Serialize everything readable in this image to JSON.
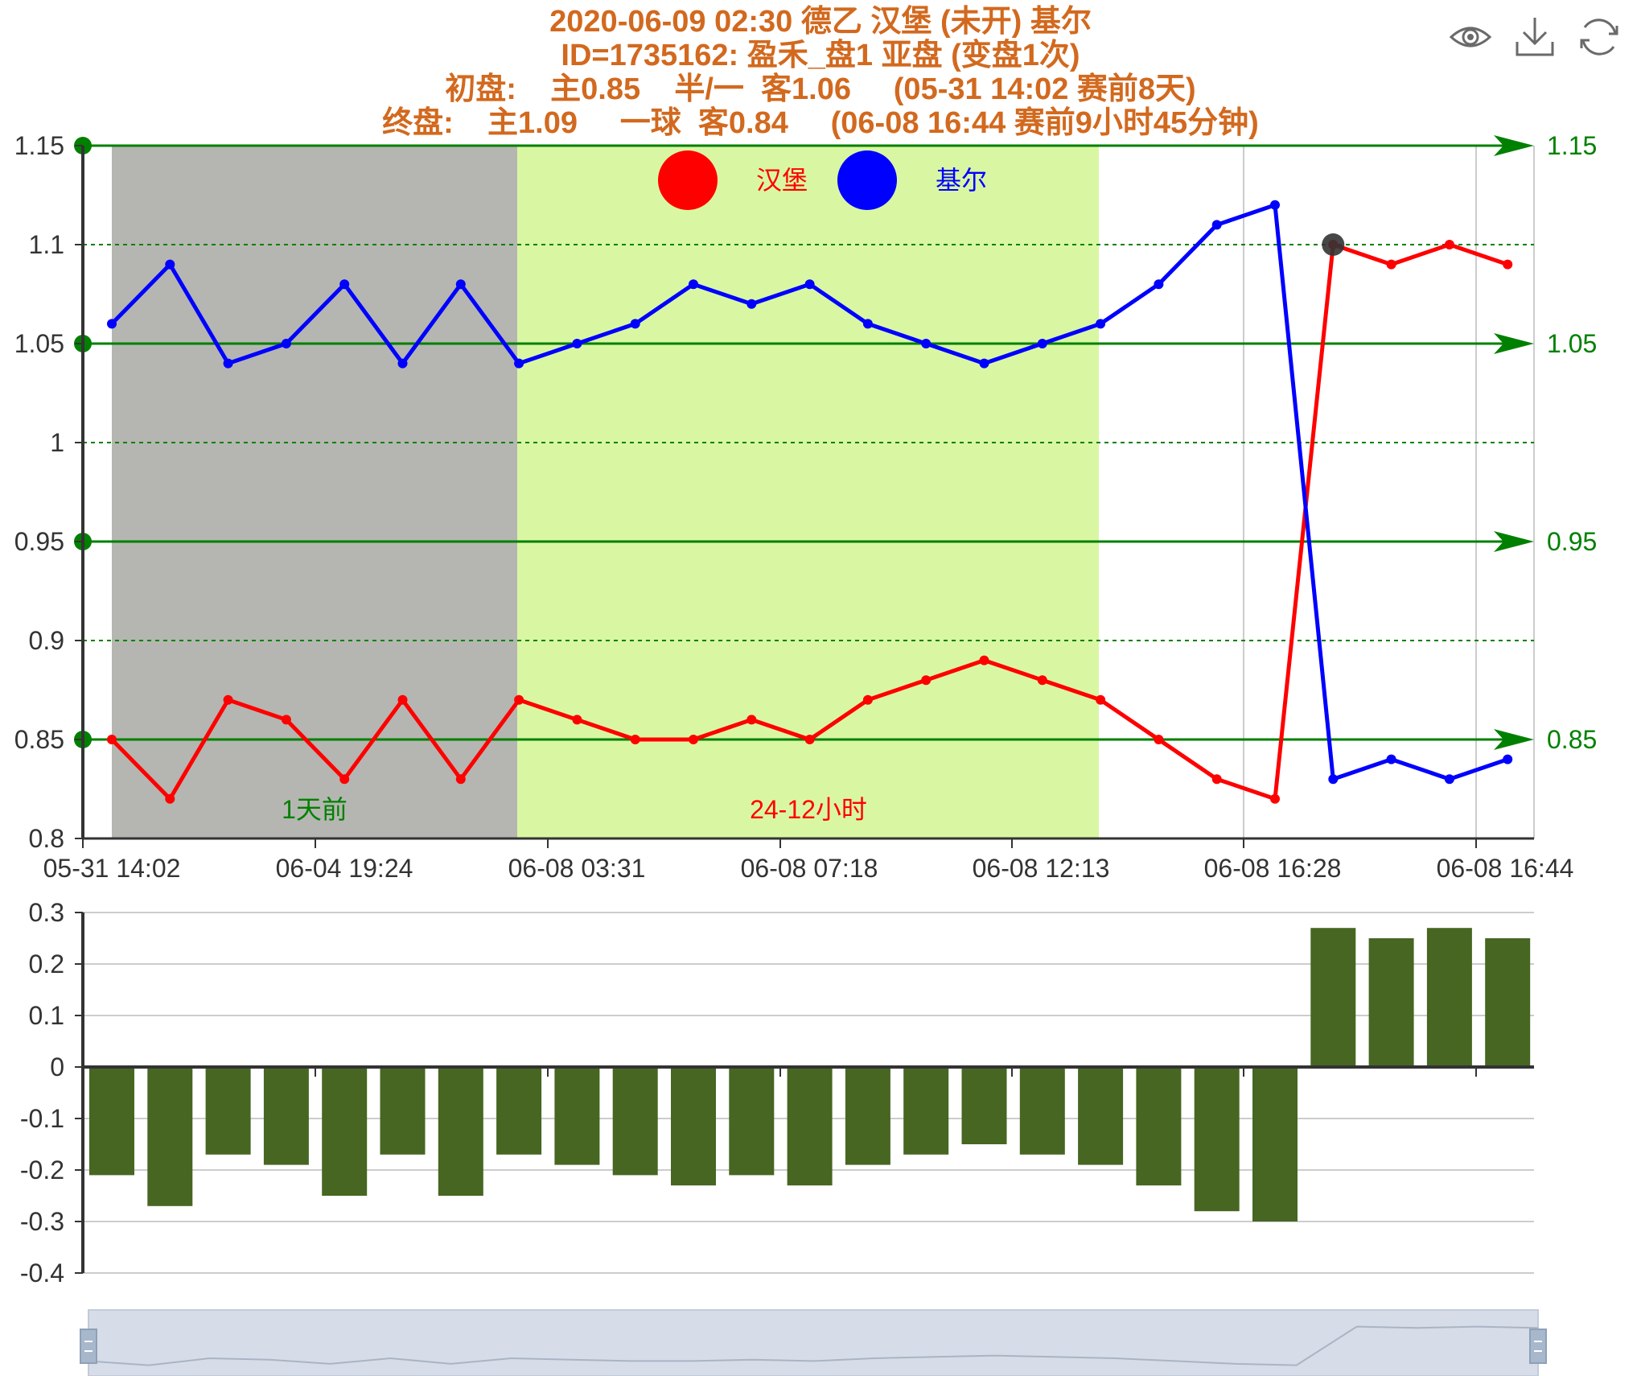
{
  "title": {
    "line1": "2020-06-09 02:30 德乙 汉堡 (未开) 基尔",
    "line2": "ID=1735162: 盈禾_盘1 亚盘 (变盘1次)",
    "line3": "初盘:    主0.85    半/一  客1.06     (05-31 14:02 赛前8天)",
    "line4": "终盘:    主1.09     一球  客0.84     (06-08 16:44 赛前9小时45分钟)"
  },
  "toolbox": {
    "icons": [
      "eye-icon",
      "download-icon",
      "refresh-icon"
    ]
  },
  "colors": {
    "title": "#d2691e",
    "home": "#ff0000",
    "away": "#0000ff",
    "ref_line": "#008000",
    "bar": "#466622",
    "zone1": "#b5b6b1",
    "zone2": "#d9f7a2"
  },
  "chart_data": [
    {
      "type": "line",
      "legend": {
        "items": [
          "汉堡",
          "基尔"
        ],
        "position": "top-center"
      },
      "x_labels": [
        "05-31 14:02",
        "06-04 19:24",
        "06-08 03:31",
        "06-08 07:18",
        "06-08 12:13",
        "06-08 16:28",
        "06-08 16:44"
      ],
      "yticks": [
        "1.15",
        "1.1",
        "1.05",
        "1",
        "0.95",
        "0.9",
        "0.85",
        "0.8"
      ],
      "ylim": [
        0.8,
        1.15
      ],
      "reference_lines": [
        {
          "value": 1.15,
          "label": "1.15"
        },
        {
          "value": 1.05,
          "label": "1.05"
        },
        {
          "value": 0.95,
          "label": "0.95"
        },
        {
          "value": 0.85,
          "label": "0.85"
        }
      ],
      "zones": [
        {
          "label": "1天前",
          "color": "#b5b6b1",
          "label_color": "#008000"
        },
        {
          "label": "24-12小时",
          "color": "#d9f7a2",
          "label_color": "#ff0000"
        }
      ],
      "series": [
        {
          "name": "汉堡",
          "color": "#ff0000",
          "values": [
            0.85,
            0.82,
            0.87,
            0.86,
            0.83,
            0.87,
            0.83,
            0.87,
            0.86,
            0.85,
            0.85,
            0.86,
            0.85,
            0.87,
            0.88,
            0.89,
            0.88,
            0.87,
            0.85,
            0.83,
            0.82,
            1.1,
            1.09,
            1.1,
            1.09
          ]
        },
        {
          "name": "基尔",
          "color": "#0000ff",
          "values": [
            1.06,
            1.09,
            1.04,
            1.05,
            1.08,
            1.04,
            1.08,
            1.04,
            1.05,
            1.06,
            1.08,
            1.07,
            1.08,
            1.06,
            1.05,
            1.04,
            1.05,
            1.06,
            1.08,
            1.11,
            1.12,
            0.83,
            0.84,
            0.83,
            0.84
          ]
        }
      ],
      "highlight_point": {
        "series": "汉堡",
        "index": 21,
        "value": 1.1
      }
    },
    {
      "type": "bar",
      "yticks": [
        "0.3",
        "0.2",
        "0.1",
        "0",
        "-0.1",
        "-0.2",
        "-0.3",
        "-0.4"
      ],
      "ylim": [
        -0.4,
        0.3
      ],
      "values": [
        -0.21,
        -0.27,
        -0.17,
        -0.19,
        -0.25,
        -0.17,
        -0.25,
        -0.17,
        -0.19,
        -0.21,
        -0.23,
        -0.21,
        -0.23,
        -0.19,
        -0.17,
        -0.15,
        -0.17,
        -0.19,
        -0.23,
        -0.28,
        -0.3,
        0.27,
        0.25,
        0.27,
        0.25
      ]
    }
  ]
}
